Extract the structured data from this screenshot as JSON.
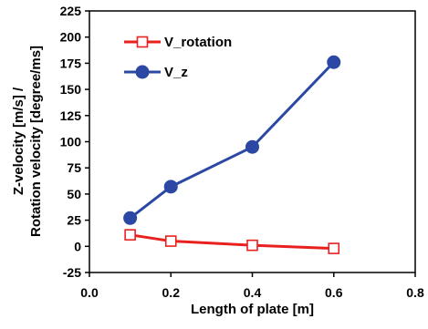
{
  "chart_data": {
    "type": "line",
    "xlabel": "Length of plate [m]",
    "ylabel_lines": [
      "Z-velocity  [m/s] /",
      "Rotation velocity [degree/ms]"
    ],
    "xlim": [
      0.0,
      0.8
    ],
    "ylim": [
      -25,
      225
    ],
    "x_ticks": [
      "0.0",
      "0.2",
      "0.4",
      "0.6",
      "0.8"
    ],
    "y_ticks": [
      "-25",
      "0",
      "25",
      "50",
      "75",
      "100",
      "125",
      "150",
      "175",
      "200",
      "225"
    ],
    "grid": false,
    "legend_position": "top-left",
    "series": [
      {
        "name": "V_rotation",
        "color": "#e8211f",
        "marker": "open-square",
        "x": [
          0.1,
          0.2,
          0.4,
          0.6
        ],
        "y": [
          11,
          5,
          1,
          -2
        ]
      },
      {
        "name": "V_z",
        "color": "#2b48a4",
        "marker": "filled-circle",
        "x": [
          0.1,
          0.2,
          0.4,
          0.6
        ],
        "y": [
          27,
          57,
          95,
          176
        ]
      }
    ]
  }
}
